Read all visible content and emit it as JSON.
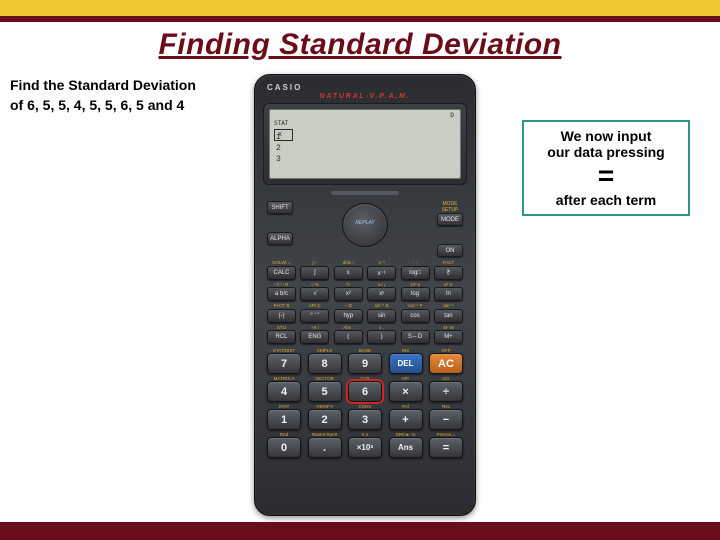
{
  "colors": {
    "top_band": "#f0c830",
    "stripe": "#6a0d1a",
    "title": "#6a0d1a",
    "callout_border": "#299990",
    "calc_body": "#3a3d42",
    "screen_bg": "#c7cfc4",
    "btn_orange": "#d87a2c",
    "btn_blue": "#2e62b0",
    "highlight": "#d22424",
    "natural": "#d23a2e"
  },
  "title": "Finding Standard Deviation",
  "prompt": {
    "line1": "Find the Standard Deviation",
    "line2": "of 6, 5, 5, 4, 5, 5, 6, 5 and 4"
  },
  "callout": {
    "l1": "We now input",
    "l2": "our data pressing",
    "eq": "=",
    "l3": "after each term"
  },
  "calc": {
    "brand": "CASIO",
    "natural": "NATURAL-V.P.A.M.",
    "screen": {
      "status": "D",
      "header": "x",
      "rows": [
        "1",
        "2",
        "3"
      ]
    },
    "top_row": {
      "legends_l": [
        "",
        ""
      ],
      "legends_r": [
        "MODE SETUP",
        ""
      ],
      "left": [
        "SHIFT",
        "ALPHA"
      ],
      "right": [
        "MODE",
        "ON"
      ],
      "dpad": "REPLAY"
    },
    "fn": {
      "legends": [
        [
          "SOLVE =",
          "∫ ⌐",
          "d/dx !",
          "x⁻¹",
          ":  ;",
          "FACT"
        ],
        [
          "□/□ ÷R",
          "√ %",
          "³√",
          "x√ ₓ",
          "10ˣ  e",
          "eˣ  π"
        ],
        [
          "FACT B",
          "nPr C",
          "--  D",
          "sin⁻¹ E",
          "cos⁻¹ F",
          "tan⁻¹ "
        ],
        [
          "STO",
          "÷R  i",
          "Abs  :",
          "x  ,",
          "  ",
          "M- M"
        ]
      ],
      "rows": [
        [
          "CALC",
          "∫",
          "x",
          "x⁻¹",
          "log□",
          "∛"
        ],
        [
          "a b/c",
          "√",
          "x²",
          "xʸ",
          "log",
          "ln"
        ],
        [
          "(-)",
          "° ' \"",
          "hyp",
          "sin",
          "cos",
          "tan"
        ],
        [
          "RCL",
          "ENG",
          "(",
          ")",
          "S⇔D",
          "M+"
        ]
      ]
    },
    "num": {
      "legends": [
        [
          "STAT/DIST",
          "CMPLX",
          "BASE",
          "INS",
          "OFF"
        ],
        [
          "MATRIX A",
          "VECTOR",
          "CLR",
          "nPr",
          "nCr"
        ],
        [
          "STAT",
          ":VERIFY:",
          "CONV",
          "Pol",
          "Rec"
        ],
        [
          "Rnd",
          "RanInt Ran#",
          "π e",
          "DRG►  %",
          "PreAns ="
        ]
      ],
      "rows": [
        [
          "7",
          "8",
          "9",
          "DEL",
          "AC"
        ],
        [
          "4",
          "5",
          "6",
          "×",
          "÷"
        ],
        [
          "1",
          "2",
          "3",
          "+",
          "−"
        ],
        [
          "0",
          ".",
          "×10ˣ",
          "Ans",
          "="
        ]
      ],
      "highlight": "6"
    }
  }
}
